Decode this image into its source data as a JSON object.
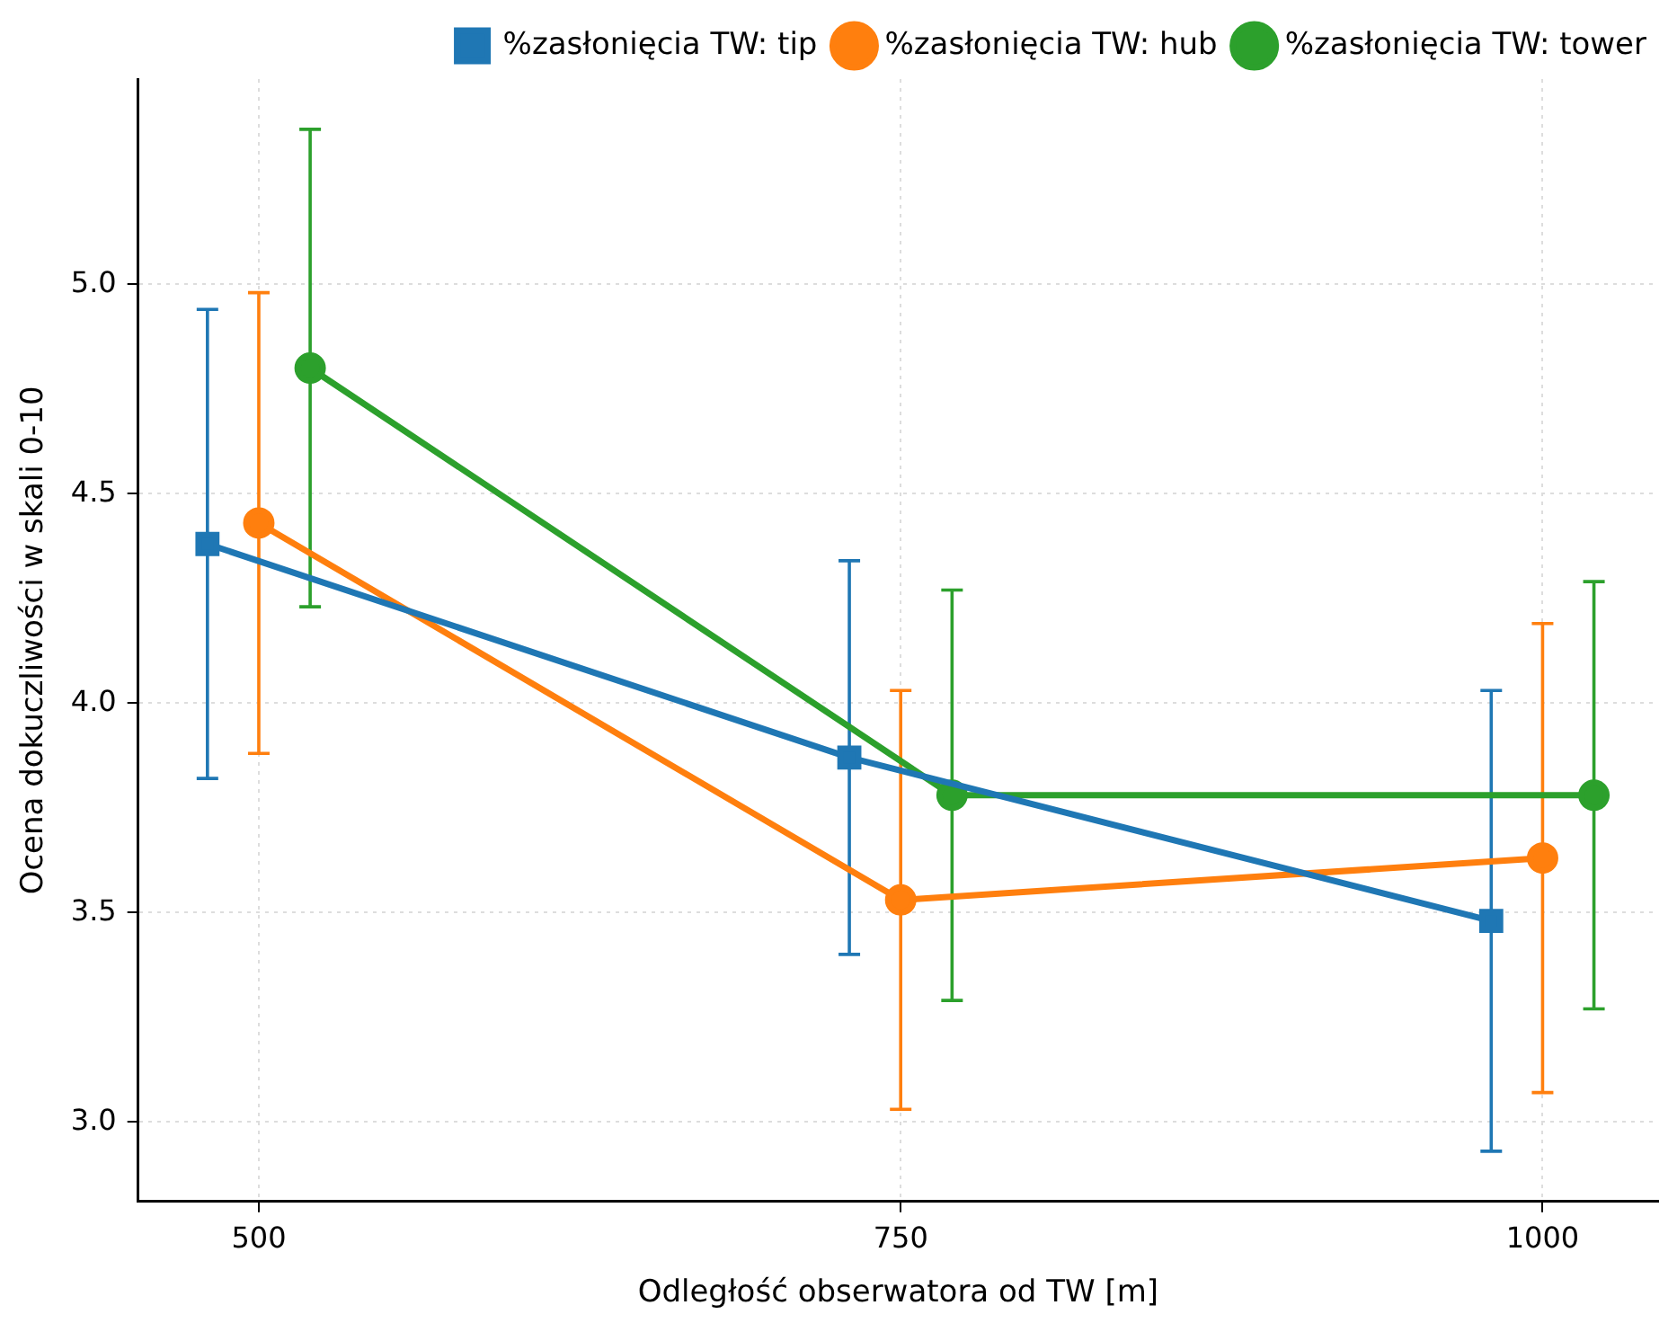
{
  "chart_data": {
    "type": "line",
    "xlabel": "Odległość obserwatora od TW [m]",
    "ylabel": "Ocena dokuczliwości w skali 0-10",
    "xlim": [
      453,
      1045
    ],
    "xticks": [
      500,
      750,
      1000
    ],
    "ylim": [
      2.81,
      5.49
    ],
    "yticks": [
      {
        "value": 3,
        "label": "3.0"
      },
      {
        "value": 3.5,
        "label": "3.5"
      },
      {
        "value": 4,
        "label": "4.0"
      },
      {
        "value": 4.5,
        "label": "4.5"
      },
      {
        "value": 5,
        "label": "5.0"
      }
    ],
    "grid": true,
    "legend": "top right",
    "line_style": "solid",
    "series": [
      {
        "name": "%zasłonięcia TW: tip",
        "color": "#1f77b4",
        "marker": "square",
        "x": [
          480,
          730,
          980
        ],
        "values": [
          4.38,
          3.87,
          3.48
        ],
        "errors": [
          0.56,
          0.47,
          0.55
        ]
      },
      {
        "name": "%zasłonięcia TW: hub",
        "color": "#ff7f0e",
        "marker": "circle",
        "x": [
          500,
          750,
          1000
        ],
        "values": [
          4.43,
          3.53,
          3.63
        ],
        "errors": [
          0.55,
          0.5,
          0.56
        ]
      },
      {
        "name": "%zasłonięcia TW: tower",
        "color": "#2ca02c",
        "marker": "circle",
        "x": [
          520,
          770,
          1020
        ],
        "values": [
          4.8,
          3.78,
          3.78
        ],
        "errors": [
          0.57,
          0.49,
          0.51
        ]
      }
    ]
  }
}
